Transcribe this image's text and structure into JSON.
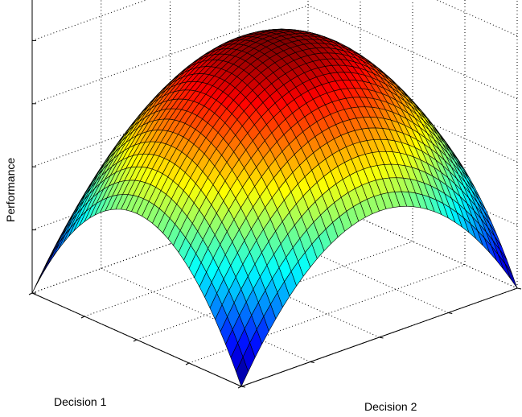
{
  "chart_data": {
    "type": "surface",
    "title": "",
    "xlabel": "Decision 1",
    "ylabel": "Decision 2",
    "zlabel": "Performance",
    "grid": true,
    "colormap": "jet",
    "mesh_edges": "black",
    "surface": "z = 1 - x^2 - y^2 on the square -1 <= x <= 1, -1 <= y <= 1; peak at the center, minimum at the four corners",
    "xlim": [
      -1,
      1
    ],
    "ylim": [
      -1,
      1
    ],
    "zlim": [
      -1,
      1.5
    ],
    "x_ticks": [
      -1,
      -0.5,
      0,
      0.5,
      1
    ],
    "y_ticks": [
      -1,
      -0.5,
      0,
      0.5,
      1
    ],
    "z_ticks": [
      -1,
      -0.5,
      0,
      0.5,
      1,
      1.5
    ]
  }
}
